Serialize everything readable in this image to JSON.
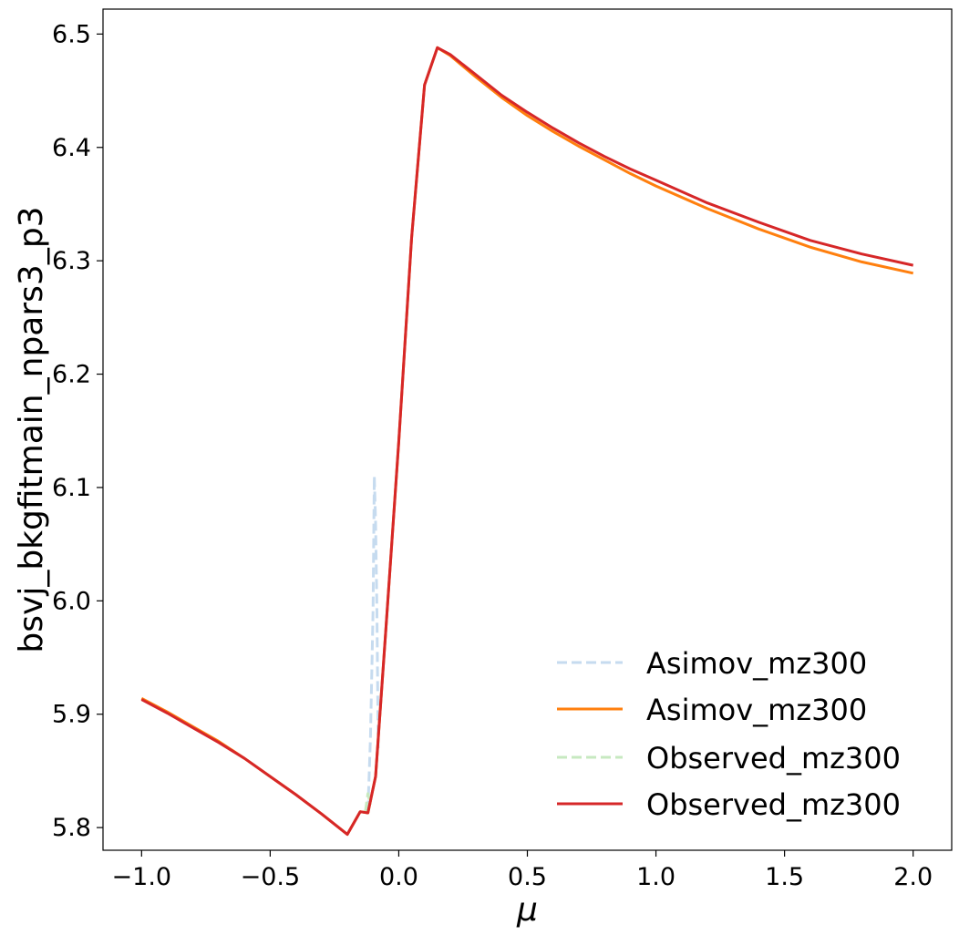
{
  "chart_data": {
    "type": "line",
    "title": "",
    "xlabel": "μ",
    "ylabel": "bsvj_bkgfitmain_npars3_p3",
    "xlim": [
      -1.15,
      2.15
    ],
    "ylim": [
      5.78,
      6.522
    ],
    "grid": false,
    "legend_position": "lower-right",
    "x_ticks": [
      -1.0,
      -0.5,
      0.0,
      0.5,
      1.0,
      1.5,
      2.0
    ],
    "x_tick_labels": [
      "−1.0",
      "−0.5",
      "0.0",
      "0.5",
      "1.0",
      "1.5",
      "2.0"
    ],
    "y_ticks": [
      5.8,
      5.9,
      6.0,
      6.1,
      6.2,
      6.3,
      6.4,
      6.5
    ],
    "y_tick_labels": [
      "5.8",
      "5.9",
      "6.0",
      "6.1",
      "6.2",
      "6.3",
      "6.4",
      "6.5"
    ],
    "series": [
      {
        "name": "Asimov_mz300",
        "color": "#c6dbef",
        "dash": "dashed",
        "x": [
          -0.12,
          -0.11,
          -0.1,
          -0.095,
          -0.09,
          -0.085,
          -0.08
        ],
        "y": [
          5.815,
          5.88,
          5.99,
          6.11,
          6.07,
          5.99,
          5.87
        ]
      },
      {
        "name": "Asimov_mz300",
        "color": "#ff7f0e",
        "dash": "solid",
        "x": [
          -1.0,
          -0.9,
          -0.8,
          -0.7,
          -0.6,
          -0.5,
          -0.4,
          -0.3,
          -0.2,
          -0.15,
          -0.12,
          -0.09,
          -0.05,
          0.0,
          0.05,
          0.1,
          0.15,
          0.2,
          0.3,
          0.4,
          0.5,
          0.6,
          0.7,
          0.8,
          0.9,
          1.0,
          1.2,
          1.4,
          1.6,
          1.8,
          2.0
        ],
        "y": [
          5.914,
          5.902,
          5.889,
          5.876,
          5.861,
          5.845,
          5.829,
          5.812,
          5.794,
          5.814,
          5.813,
          5.845,
          5.975,
          6.14,
          6.32,
          6.455,
          6.488,
          6.481,
          6.462,
          6.444,
          6.428,
          6.414,
          6.401,
          6.389,
          6.377,
          6.366,
          6.346,
          6.328,
          6.312,
          6.299,
          6.289
        ]
      },
      {
        "name": "Observed_mz300",
        "color": "#c7e9c0",
        "dash": "dashed",
        "x": [
          -0.13,
          -0.12,
          -0.11
        ],
        "y": [
          5.814,
          5.83,
          5.82
        ]
      },
      {
        "name": "Observed_mz300",
        "color": "#d62728",
        "dash": "solid",
        "x": [
          -1.0,
          -0.9,
          -0.8,
          -0.7,
          -0.6,
          -0.5,
          -0.4,
          -0.3,
          -0.2,
          -0.15,
          -0.12,
          -0.09,
          -0.05,
          0.0,
          0.05,
          0.1,
          0.15,
          0.2,
          0.3,
          0.4,
          0.5,
          0.6,
          0.7,
          0.8,
          0.9,
          1.0,
          1.2,
          1.4,
          1.6,
          1.8,
          2.0
        ],
        "y": [
          5.913,
          5.901,
          5.888,
          5.875,
          5.861,
          5.845,
          5.829,
          5.812,
          5.794,
          5.814,
          5.813,
          5.845,
          5.975,
          6.14,
          6.32,
          6.455,
          6.488,
          6.482,
          6.464,
          6.446,
          6.431,
          6.417,
          6.404,
          6.392,
          6.381,
          6.371,
          6.351,
          6.334,
          6.318,
          6.306,
          6.296
        ]
      }
    ],
    "legend_order": [
      0,
      1,
      2,
      3
    ]
  }
}
